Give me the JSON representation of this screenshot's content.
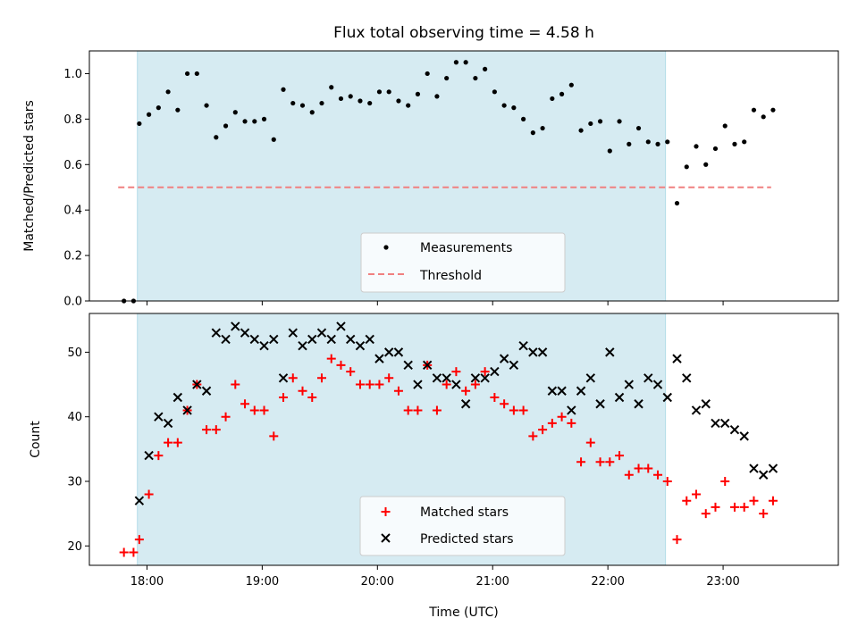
{
  "chart_data": {
    "title": "Flux total observing time = 4.58 h",
    "xlabel": "Time (UTC)",
    "x_ticks": [
      "18:00",
      "19:00",
      "20:00",
      "21:00",
      "22:00",
      "23:00"
    ],
    "x_range": [
      "17:30",
      "24:00"
    ],
    "shaded_interval": [
      "17:55",
      "22:30"
    ],
    "shade_color": "#add8e6",
    "panels": [
      {
        "type": "scatter",
        "ylabel": "Matched/Predicted stars",
        "ylim": [
          0.0,
          1.1
        ],
        "y_ticks": [
          "0.0",
          "0.2",
          "0.4",
          "0.6",
          "0.8",
          "1.0"
        ],
        "legend_position": "lower center",
        "series": [
          {
            "name": "Measurements",
            "marker": "dot",
            "color": "#000000",
            "x": [
              "17:48",
              "17:53",
              "17:56",
              "18:01",
              "18:06",
              "18:11",
              "18:16",
              "18:21",
              "18:26",
              "18:31",
              "18:36",
              "18:41",
              "18:46",
              "18:51",
              "18:56",
              "19:01",
              "19:06",
              "19:11",
              "19:16",
              "19:21",
              "19:26",
              "19:31",
              "19:36",
              "19:41",
              "19:46",
              "19:51",
              "19:56",
              "20:01",
              "20:06",
              "20:11",
              "20:16",
              "20:21",
              "20:26",
              "20:31",
              "20:36",
              "20:41",
              "20:46",
              "20:51",
              "20:56",
              "21:01",
              "21:06",
              "21:11",
              "21:16",
              "21:21",
              "21:26",
              "21:31",
              "21:36",
              "21:41",
              "21:46",
              "21:51",
              "21:56",
              "22:01",
              "22:06",
              "22:11",
              "22:16",
              "22:21",
              "22:26",
              "22:31",
              "22:36",
              "22:41",
              "22:46",
              "22:51",
              "22:56",
              "23:01",
              "23:06",
              "23:11",
              "23:16",
              "23:21",
              "23:26"
            ],
            "values": [
              0.0,
              0.0,
              0.78,
              0.82,
              0.85,
              0.92,
              0.84,
              1.0,
              1.0,
              0.86,
              0.72,
              0.77,
              0.83,
              0.79,
              0.79,
              0.8,
              0.71,
              0.93,
              0.87,
              0.86,
              0.83,
              0.87,
              0.94,
              0.89,
              0.9,
              0.88,
              0.87,
              0.92,
              0.92,
              0.88,
              0.86,
              0.91,
              1.0,
              0.9,
              0.98,
              1.05,
              1.05,
              0.98,
              1.02,
              0.92,
              0.86,
              0.85,
              0.8,
              0.74,
              0.76,
              0.89,
              0.91,
              0.95,
              0.75,
              0.78,
              0.79,
              0.66,
              0.79,
              0.69,
              0.76,
              0.7,
              0.69,
              0.7,
              0.43,
              0.59,
              0.68,
              0.6,
              0.67,
              0.77,
              0.69,
              0.7,
              0.84,
              0.81,
              0.84
            ]
          },
          {
            "name": "Threshold",
            "marker": "dashed-line",
            "color": "#f08080",
            "x": [
              "17:45",
              "23:25"
            ],
            "values": [
              0.5,
              0.5
            ]
          }
        ]
      },
      {
        "type": "scatter",
        "ylabel": "Count",
        "ylim": [
          17,
          56
        ],
        "y_ticks": [
          "20",
          "30",
          "40",
          "50"
        ],
        "legend_position": "lower center",
        "series": [
          {
            "name": "Matched stars",
            "marker": "plus",
            "color": "#ff0000",
            "x": [
              "17:48",
              "17:53",
              "17:56",
              "18:01",
              "18:06",
              "18:11",
              "18:16",
              "18:21",
              "18:26",
              "18:31",
              "18:36",
              "18:41",
              "18:46",
              "18:51",
              "18:56",
              "19:01",
              "19:06",
              "19:11",
              "19:16",
              "19:21",
              "19:26",
              "19:31",
              "19:36",
              "19:41",
              "19:46",
              "19:51",
              "19:56",
              "20:01",
              "20:06",
              "20:11",
              "20:16",
              "20:21",
              "20:26",
              "20:31",
              "20:36",
              "20:41",
              "20:46",
              "20:51",
              "20:56",
              "21:01",
              "21:06",
              "21:11",
              "21:16",
              "21:21",
              "21:26",
              "21:31",
              "21:36",
              "21:41",
              "21:46",
              "21:51",
              "21:56",
              "22:01",
              "22:06",
              "22:11",
              "22:16",
              "22:21",
              "22:26",
              "22:31",
              "22:36",
              "22:41",
              "22:46",
              "22:51",
              "22:56",
              "23:01",
              "23:06",
              "23:11",
              "23:16",
              "23:21",
              "23:26"
            ],
            "values": [
              19,
              19,
              21,
              28,
              34,
              36,
              36,
              41,
              45,
              38,
              38,
              40,
              45,
              42,
              41,
              41,
              37,
              43,
              46,
              44,
              43,
              46,
              49,
              48,
              47,
              45,
              45,
              45,
              46,
              44,
              41,
              41,
              48,
              41,
              45,
              47,
              44,
              45,
              47,
              43,
              42,
              41,
              41,
              37,
              38,
              39,
              40,
              39,
              33,
              36,
              33,
              33,
              34,
              31,
              32,
              32,
              31,
              30,
              21,
              27,
              28,
              25,
              26,
              30,
              26,
              26,
              27,
              25,
              27
            ]
          },
          {
            "name": "Predicted stars",
            "marker": "x",
            "color": "#000000",
            "x": [
              "17:56",
              "18:01",
              "18:06",
              "18:11",
              "18:16",
              "18:21",
              "18:26",
              "18:31",
              "18:36",
              "18:41",
              "18:46",
              "18:51",
              "18:56",
              "19:01",
              "19:06",
              "19:11",
              "19:16",
              "19:21",
              "19:26",
              "19:31",
              "19:36",
              "19:41",
              "19:46",
              "19:51",
              "19:56",
              "20:01",
              "20:06",
              "20:11",
              "20:16",
              "20:21",
              "20:26",
              "20:31",
              "20:36",
              "20:41",
              "20:46",
              "20:51",
              "20:56",
              "21:01",
              "21:06",
              "21:11",
              "21:16",
              "21:21",
              "21:26",
              "21:31",
              "21:36",
              "21:41",
              "21:46",
              "21:51",
              "21:56",
              "22:01",
              "22:06",
              "22:11",
              "22:16",
              "22:21",
              "22:26",
              "22:31",
              "22:36",
              "22:41",
              "22:46",
              "22:51",
              "22:56",
              "23:01",
              "23:06",
              "23:11",
              "23:16",
              "23:21",
              "23:26"
            ],
            "values": [
              27,
              34,
              40,
              39,
              43,
              41,
              45,
              44,
              53,
              52,
              54,
              53,
              52,
              51,
              52,
              46,
              53,
              51,
              52,
              53,
              52,
              54,
              52,
              51,
              52,
              49,
              50,
              50,
              48,
              45,
              48,
              46,
              46,
              45,
              42,
              46,
              46,
              47,
              49,
              48,
              51,
              50,
              50,
              44,
              44,
              41,
              44,
              46,
              42,
              50,
              43,
              45,
              42,
              46,
              45,
              43,
              49,
              46,
              41,
              42,
              39,
              39,
              38,
              37,
              32,
              31,
              32
            ]
          }
        ]
      }
    ]
  }
}
